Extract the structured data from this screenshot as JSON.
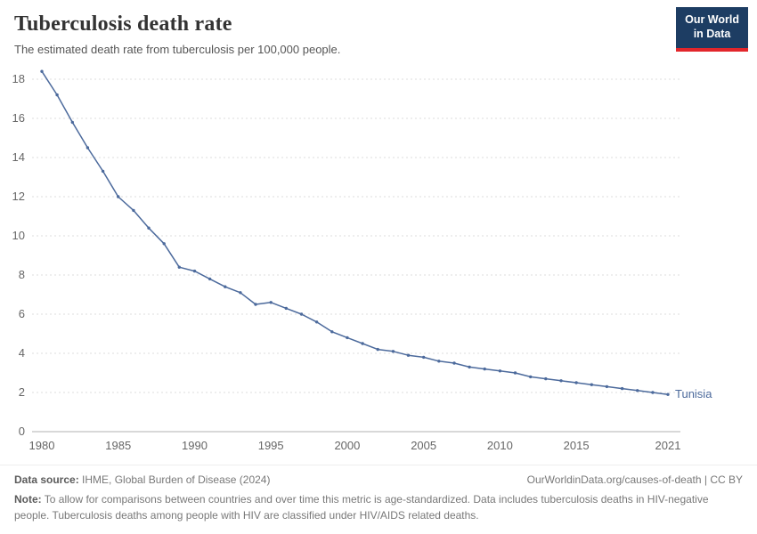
{
  "header": {
    "title": "Tuberculosis death rate",
    "subtitle": "The estimated death rate from tuberculosis per 100,000 people.",
    "logo_line1": "Our World",
    "logo_line2": "in Data"
  },
  "colors": {
    "line": "#4C6A9C",
    "grid": "#dcdcdc",
    "axis": "#b0b0b0",
    "tick_text": "#666666",
    "logo_bg": "#1d3d63",
    "logo_accent": "#e2262b"
  },
  "chart_data": {
    "type": "line",
    "title": "Tuberculosis death rate",
    "xlabel": "",
    "ylabel": "",
    "ylim": [
      0,
      18
    ],
    "yticks": [
      0,
      2,
      4,
      6,
      8,
      10,
      12,
      14,
      16,
      18
    ],
    "xticks": [
      1980,
      1985,
      1990,
      1995,
      2000,
      2005,
      2010,
      2015,
      2021
    ],
    "grid": "dashed-horizontal",
    "legend_position": "end-of-line",
    "series": [
      {
        "name": "Tunisia",
        "color": "#4C6A9C",
        "x": [
          1980,
          1981,
          1982,
          1983,
          1984,
          1985,
          1986,
          1987,
          1988,
          1989,
          1990,
          1991,
          1992,
          1993,
          1994,
          1995,
          1996,
          1997,
          1998,
          1999,
          2000,
          2001,
          2002,
          2003,
          2004,
          2005,
          2006,
          2007,
          2008,
          2009,
          2010,
          2011,
          2012,
          2013,
          2014,
          2015,
          2016,
          2017,
          2018,
          2019,
          2020,
          2021
        ],
        "values": [
          18.4,
          17.2,
          15.8,
          14.5,
          13.3,
          12.0,
          11.3,
          10.4,
          9.6,
          8.4,
          8.2,
          7.8,
          7.4,
          7.1,
          6.5,
          6.6,
          6.3,
          6.0,
          5.6,
          5.1,
          4.8,
          4.5,
          4.2,
          4.1,
          3.9,
          3.8,
          3.6,
          3.5,
          3.3,
          3.2,
          3.1,
          3.0,
          2.8,
          2.7,
          2.6,
          2.5,
          2.4,
          2.3,
          2.2,
          2.1,
          2.0,
          1.9
        ]
      }
    ]
  },
  "footer": {
    "datasource_label": "Data source:",
    "datasource_text": " IHME, Global Burden of Disease (2024)",
    "link": "OurWorldinData.org/causes-of-death | CC BY",
    "note_label": "Note:",
    "note_text": " To allow for comparisons between countries and over time this metric is age-standardized. Data includes tuberculosis deaths in HIV-negative people. Tuberculosis deaths among people with HIV are classified under HIV/AIDS related deaths."
  }
}
